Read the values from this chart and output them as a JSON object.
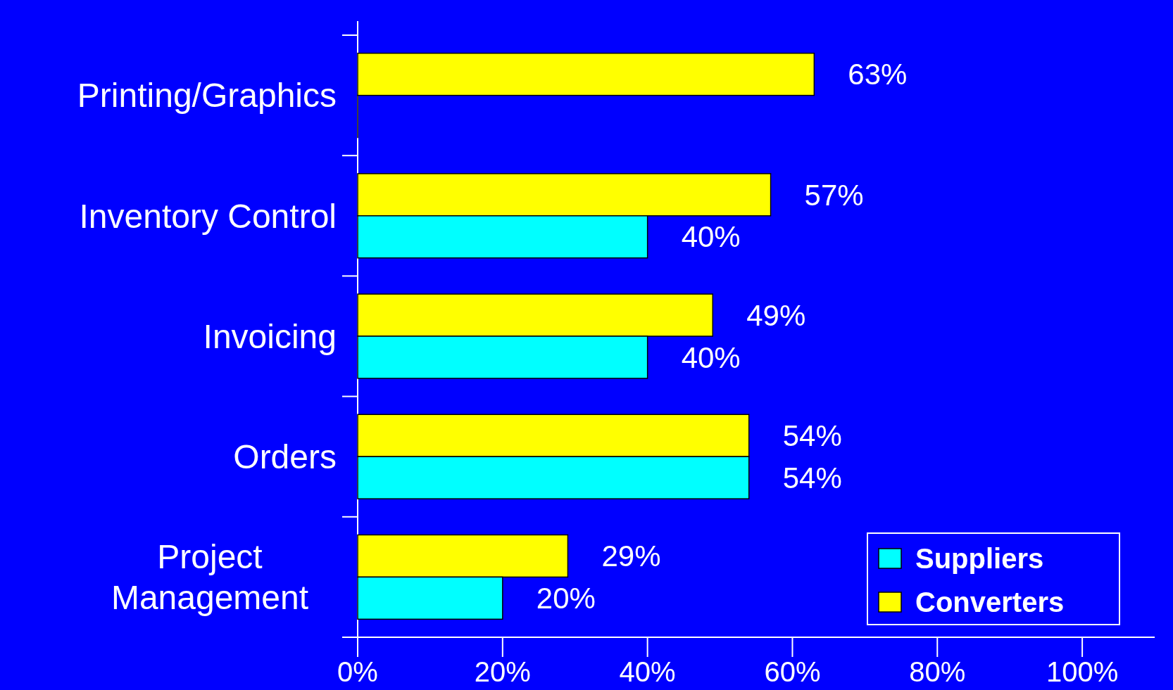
{
  "chart_data": {
    "type": "bar",
    "orientation": "horizontal",
    "categories": [
      "Printing/Graphics",
      "Inventory Control",
      "Invoicing",
      "Orders",
      "Project Management"
    ],
    "series": [
      {
        "name": "Converters",
        "color": "#ffff00",
        "values": [
          63,
          57,
          49,
          54,
          29
        ],
        "value_labels": [
          "63%",
          "57%",
          "49%",
          "54%",
          "29%"
        ]
      },
      {
        "name": "Suppliers",
        "color": "#00ffff",
        "values": [
          0,
          40,
          40,
          54,
          20
        ],
        "value_labels": [
          null,
          "40%",
          "40%",
          "54%",
          "20%"
        ]
      }
    ],
    "xlim": [
      0,
      110
    ],
    "xticks": [
      {
        "value": 0,
        "label": "0%"
      },
      {
        "value": 20,
        "label": "20%"
      },
      {
        "value": 40,
        "label": "40%"
      },
      {
        "value": 60,
        "label": "60%"
      },
      {
        "value": 80,
        "label": "80%"
      },
      {
        "value": 100,
        "label": "100%"
      }
    ],
    "legend": "bottom right",
    "grid": false
  }
}
